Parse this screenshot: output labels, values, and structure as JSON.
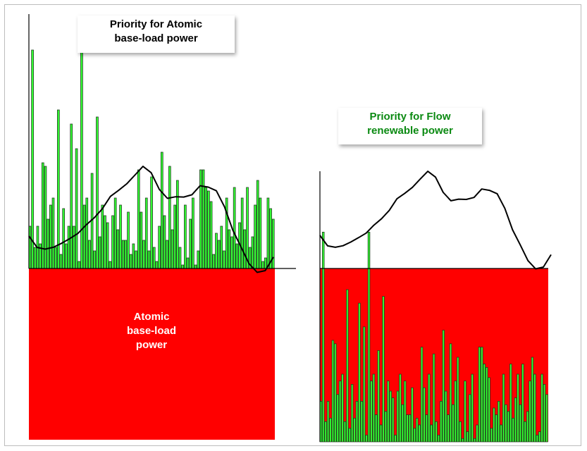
{
  "colors": {
    "bar_fill": "#33ff33",
    "bar_stroke": "#1f3d1f",
    "base_block": "#ff0000",
    "demand_curve": "#000000",
    "right_title": "#0b8a12"
  },
  "left_panel": {
    "title_lines": [
      "Priority for Atomic",
      "base-load power"
    ],
    "base_block_lines": [
      "Atomic",
      "base-load",
      "power"
    ]
  },
  "right_panel": {
    "title_lines": [
      "Priority for Flow",
      "renewable power"
    ]
  },
  "chart_data": [
    {
      "type": "bar",
      "description_role": "left panel: atomic base-load block with fluctuating renewable bars stacked on top",
      "base_level": 0.25,
      "bars": [
        0.12,
        0.62,
        0.06,
        0.12,
        0.07,
        0.3,
        0.29,
        0.14,
        0.18,
        0.2,
        0.06,
        0.45,
        0.04,
        0.17,
        0.07,
        0.12,
        0.41,
        0.12,
        0.34,
        0.02,
        0.62,
        0.18,
        0.2,
        0.08,
        0.27,
        0.05,
        0.43,
        0.09,
        0.18,
        0.15,
        0.13,
        0.02,
        0.15,
        0.2,
        0.11,
        0.18,
        0.08,
        0.08,
        0.16,
        0.04,
        0.07,
        0.05,
        0.28,
        0.16,
        0.08,
        0.2,
        0.05,
        0.26,
        0.06,
        0.02,
        0.12,
        0.33,
        0.15,
        0.08,
        0.29,
        0.11,
        0.18,
        0.25,
        0.06,
        0.01,
        0.18,
        0.03,
        0.14,
        0.2,
        0.01,
        0.05,
        0.28,
        0.28,
        0.23,
        0.22,
        0.19,
        0.04,
        0.1,
        0.08,
        0.12,
        0.05,
        0.2,
        0.11,
        0.09,
        0.23,
        0.07,
        0.13,
        0.2,
        0.11,
        0.23,
        0.06,
        0.09,
        0.18,
        0.25,
        0.2,
        0.02,
        0.03,
        0.2,
        0.17,
        0.14
      ],
      "demand": [
        0.1,
        0.07,
        0.06,
        0.07,
        0.08,
        0.09,
        0.11,
        0.13,
        0.15,
        0.18,
        0.21,
        0.23,
        0.25,
        0.27,
        0.3,
        0.28,
        0.23,
        0.21,
        0.21,
        0.21,
        0.22,
        0.24,
        0.24,
        0.23,
        0.18,
        0.12,
        0.07,
        0.02,
        0.0,
        0.0,
        0.04
      ]
    },
    {
      "type": "bar",
      "description_role": "right panel: fluctuating renewable bars with red base filling the remainder below the line",
      "base_level": 0.25,
      "bars": [
        0.12,
        0.62,
        0.06,
        0.12,
        0.07,
        0.3,
        0.29,
        0.14,
        0.18,
        0.2,
        0.06,
        0.45,
        0.04,
        0.17,
        0.07,
        0.12,
        0.41,
        0.12,
        0.34,
        0.02,
        0.62,
        0.18,
        0.2,
        0.08,
        0.27,
        0.05,
        0.43,
        0.09,
        0.18,
        0.15,
        0.13,
        0.02,
        0.15,
        0.2,
        0.11,
        0.18,
        0.08,
        0.08,
        0.16,
        0.04,
        0.07,
        0.05,
        0.28,
        0.16,
        0.08,
        0.2,
        0.05,
        0.26,
        0.06,
        0.02,
        0.12,
        0.33,
        0.15,
        0.08,
        0.29,
        0.11,
        0.18,
        0.25,
        0.06,
        0.01,
        0.18,
        0.03,
        0.14,
        0.2,
        0.01,
        0.05,
        0.28,
        0.28,
        0.23,
        0.22,
        0.19,
        0.04,
        0.1,
        0.08,
        0.12,
        0.05,
        0.2,
        0.11,
        0.09,
        0.23,
        0.07,
        0.13,
        0.2,
        0.11,
        0.23,
        0.06,
        0.09,
        0.18,
        0.25,
        0.2,
        0.02,
        0.03,
        0.2,
        0.17,
        0.14
      ],
      "demand": [
        0.1,
        0.07,
        0.06,
        0.07,
        0.08,
        0.09,
        0.11,
        0.13,
        0.15,
        0.18,
        0.21,
        0.23,
        0.25,
        0.27,
        0.3,
        0.28,
        0.23,
        0.21,
        0.21,
        0.21,
        0.22,
        0.24,
        0.24,
        0.23,
        0.18,
        0.12,
        0.07,
        0.02,
        0.0,
        0.0,
        0.04
      ]
    }
  ]
}
